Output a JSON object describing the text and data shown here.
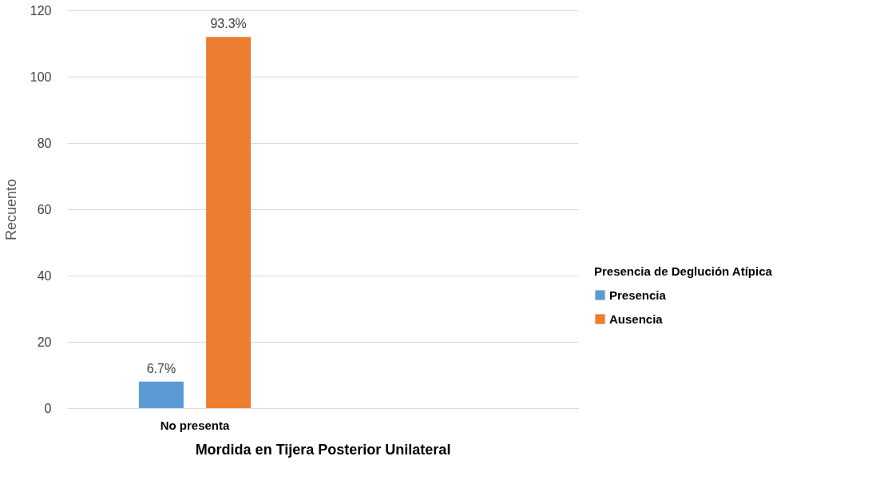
{
  "chart_data": {
    "type": "bar",
    "xlabel": "Mordida en Tijera Posterior Unilateral",
    "ylabel": "Recuento",
    "legend_title": "Presencia de Deglución Atípica",
    "categories": [
      "No presenta",
      null
    ],
    "series": [
      {
        "name": "Presencia",
        "color": "#5b9bd5",
        "values": [
          8,
          null
        ]
      },
      {
        "name": "Ausencia",
        "color": "#ed7d31",
        "values": [
          112,
          null
        ]
      }
    ],
    "annotations": [
      "6.7%",
      "93.3%"
    ],
    "ylim": [
      0,
      120
    ],
    "yticks": [
      0,
      20,
      40,
      60,
      80,
      100,
      120
    ],
    "grid": "y",
    "legend": "right"
  }
}
